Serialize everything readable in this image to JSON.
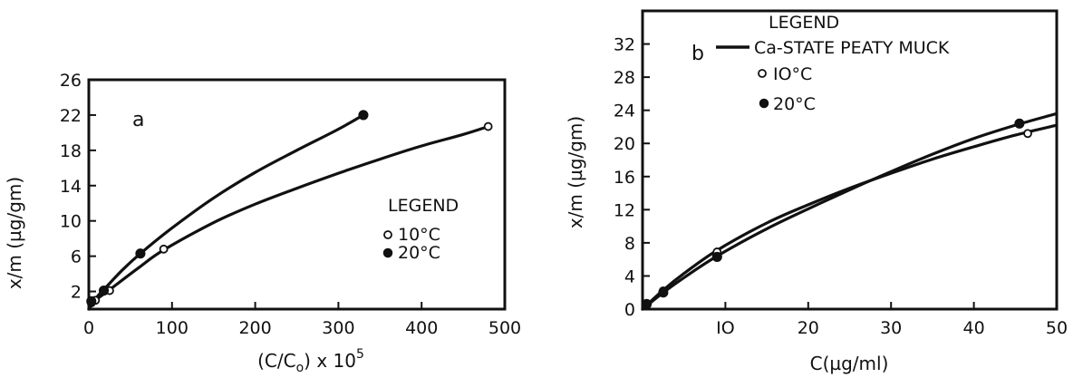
{
  "chart_data": [
    {
      "type": "line",
      "panel_label": "a",
      "xlabel_main": "(C/C",
      "xlabel_sub": "o",
      "xlabel_rest": ") x 10",
      "xlabel_sup": "5",
      "ylabel": "x/m (µg/gm)",
      "xlim": [
        0,
        500
      ],
      "ylim": [
        0,
        26
      ],
      "xticks": [
        0,
        100,
        200,
        300,
        400,
        500
      ],
      "yticks": [
        2,
        6,
        10,
        14,
        18,
        22,
        26
      ],
      "grid": false,
      "legend": {
        "title": "LEGEND",
        "placement": "center-right",
        "entries": [
          {
            "marker": "open",
            "label": "10°C"
          },
          {
            "marker": "filled",
            "label": "20°C"
          }
        ]
      },
      "series": [
        {
          "label": "10°C",
          "marker": "open",
          "points": [
            [
              3,
              0.7
            ],
            [
              8,
              1.0
            ],
            [
              25,
              2.1
            ],
            [
              90,
              6.8
            ],
            [
              480,
              20.7
            ]
          ],
          "curve": [
            [
              0,
              0
            ],
            [
              8,
              1.0
            ],
            [
              25,
              2.2
            ],
            [
              60,
              4.7
            ],
            [
              90,
              6.7
            ],
            [
              150,
              9.8
            ],
            [
              200,
              11.9
            ],
            [
              250,
              13.7
            ],
            [
              300,
              15.4
            ],
            [
              350,
              17.0
            ],
            [
              400,
              18.5
            ],
            [
              450,
              19.8
            ],
            [
              480,
              20.7
            ]
          ]
        },
        {
          "label": "20°C",
          "marker": "filled",
          "points": [
            [
              3,
              0.9
            ],
            [
              18,
              2.1
            ],
            [
              62,
              6.3
            ],
            [
              330,
              22.0
            ]
          ],
          "curve": [
            [
              0,
              0
            ],
            [
              10,
              1.4
            ],
            [
              18,
              2.2
            ],
            [
              40,
              4.4
            ],
            [
              62,
              6.3
            ],
            [
              100,
              9.2
            ],
            [
              150,
              12.6
            ],
            [
              200,
              15.5
            ],
            [
              250,
              18.0
            ],
            [
              300,
              20.4
            ],
            [
              330,
              22.0
            ]
          ]
        }
      ]
    },
    {
      "type": "line",
      "panel_label": "b",
      "xlabel": "C(µg/ml)",
      "ylabel": "x/m (µg/gm)",
      "xlim": [
        0,
        50
      ],
      "ylim": [
        0,
        36
      ],
      "xticks": [
        10,
        20,
        30,
        40,
        50
      ],
      "xtick_labels": [
        "IO",
        "20",
        "30",
        "40",
        "50"
      ],
      "yticks": [
        0,
        4,
        8,
        12,
        16,
        20,
        24,
        28,
        32
      ],
      "grid": false,
      "legend": {
        "title": "LEGEND",
        "placement": "top-center",
        "entries": [
          {
            "marker": "line",
            "label": "Ca-STATE PEATY MUCK"
          },
          {
            "marker": "open",
            "label": "IO°C"
          },
          {
            "marker": "filled",
            "label": "20°C"
          }
        ]
      },
      "series": [
        {
          "label": "IO°C",
          "marker": "open",
          "points": [
            [
              0.5,
              0.7
            ],
            [
              2.5,
              2.2
            ],
            [
              9,
              6.9
            ],
            [
              46.5,
              21.2
            ]
          ],
          "curve": [
            [
              0,
              0
            ],
            [
              2.5,
              2.3
            ],
            [
              5,
              4.3
            ],
            [
              9,
              7.1
            ],
            [
              15,
              10.4
            ],
            [
              20,
              12.6
            ],
            [
              25,
              14.6
            ],
            [
              30,
              16.4
            ],
            [
              35,
              18.1
            ],
            [
              40,
              19.6
            ],
            [
              45,
              21.0
            ],
            [
              50,
              22.2
            ]
          ]
        },
        {
          "label": "20°C",
          "marker": "filled",
          "points": [
            [
              0.5,
              0.6
            ],
            [
              2.5,
              2.0
            ],
            [
              9,
              6.3
            ],
            [
              45.5,
              22.4
            ]
          ],
          "curve": [
            [
              0,
              0
            ],
            [
              2.5,
              2.0
            ],
            [
              5,
              3.8
            ],
            [
              9,
              6.4
            ],
            [
              15,
              9.7
            ],
            [
              20,
              12.1
            ],
            [
              25,
              14.4
            ],
            [
              30,
              16.6
            ],
            [
              35,
              18.7
            ],
            [
              40,
              20.6
            ],
            [
              45,
              22.2
            ],
            [
              50,
              23.6
            ]
          ]
        }
      ]
    }
  ]
}
